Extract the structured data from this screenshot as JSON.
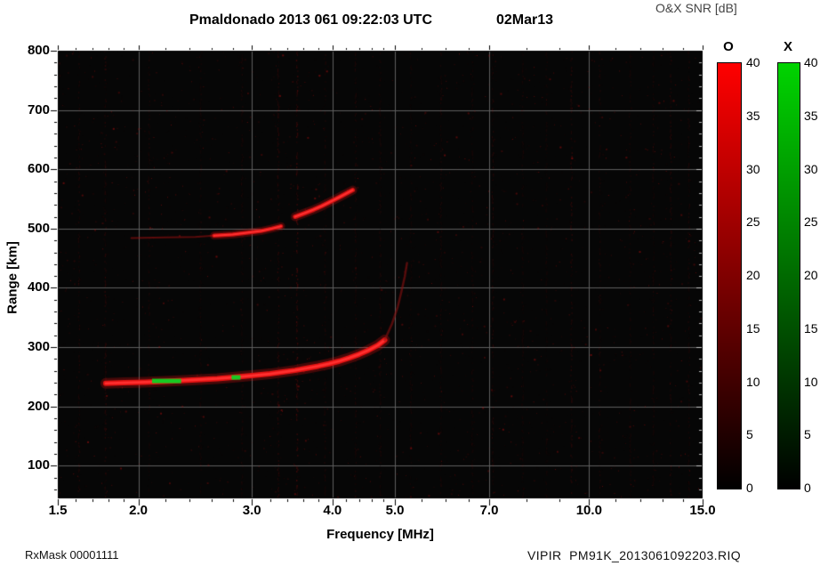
{
  "header": {
    "title_main": "Pmaldonado 2013 061 09:22:03 UTC",
    "title_date": "02Mar13",
    "colorbar_title": "O&X SNR [dB]"
  },
  "footer": {
    "left": "RxMask 00001111",
    "right": "VIPIR  PM91K_2013061092203.RIQ"
  },
  "chart_data": {
    "type": "heatmap",
    "title": "Pmaldonado 2013 061 09:22:03 UTC  02Mar13",
    "subtitle": "O&X SNR [dB] ionogram",
    "xlabel": "Frequency [MHz]",
    "ylabel": "Range [km]",
    "x_scale": "log",
    "xlim": [
      1.5,
      15.0
    ],
    "ylim": [
      45,
      800
    ],
    "x_ticks": [
      1.5,
      2,
      3,
      4,
      5,
      7,
      10,
      15
    ],
    "x_tick_labels": [
      "1.5",
      "2.0",
      "3.0",
      "4.0",
      "5.0",
      "7.0",
      "10.0",
      "15.0"
    ],
    "x_minor_ticks": [
      1.6,
      1.7,
      1.8,
      1.9,
      2.2,
      2.4,
      2.6,
      2.8,
      3.2,
      3.4,
      3.6,
      3.8,
      4.2,
      4.4,
      4.6,
      4.8,
      5.5,
      6,
      6.5,
      8,
      9,
      11,
      12,
      13,
      14
    ],
    "y_ticks": [
      100,
      200,
      300,
      400,
      500,
      600,
      700,
      800
    ],
    "y_minor_step": 20,
    "grid": {
      "x": [
        2,
        3,
        4,
        5,
        7,
        10
      ],
      "y": [
        100,
        200,
        300,
        400,
        500,
        600,
        700
      ],
      "color": "#5f5f5f"
    },
    "background": "#060606",
    "traces": [
      {
        "name": "F-region O-mode first hop",
        "color": "#e41212",
        "width": 6,
        "points": [
          [
            1.78,
            239
          ],
          [
            1.9,
            240
          ],
          [
            2.05,
            241
          ],
          [
            2.2,
            242.5
          ],
          [
            2.35,
            244
          ],
          [
            2.5,
            245.5
          ],
          [
            2.65,
            247
          ],
          [
            2.8,
            249
          ],
          [
            3.0,
            252
          ],
          [
            3.2,
            255
          ],
          [
            3.35,
            258
          ],
          [
            3.5,
            261
          ],
          [
            3.65,
            264.5
          ],
          [
            3.8,
            268
          ],
          [
            3.95,
            272
          ],
          [
            4.1,
            276.5
          ],
          [
            4.25,
            282
          ],
          [
            4.4,
            288
          ],
          [
            4.55,
            295
          ],
          [
            4.7,
            303
          ],
          [
            4.82,
            312
          ]
        ]
      },
      {
        "name": "F-region cusp asymptote",
        "color": "#8a1010",
        "width": 2.5,
        "alpha": 0.6,
        "points": [
          [
            4.82,
            312
          ],
          [
            4.95,
            340
          ],
          [
            5.05,
            368
          ],
          [
            5.12,
            395
          ],
          [
            5.18,
            420
          ],
          [
            5.22,
            442
          ]
        ]
      },
      {
        "name": "second-hop faint leading edge",
        "color": "#a01010",
        "width": 2,
        "alpha": 0.55,
        "points": [
          [
            1.95,
            484
          ],
          [
            2.2,
            485
          ],
          [
            2.45,
            486
          ],
          [
            2.62,
            488
          ]
        ]
      },
      {
        "name": "F-region second hop segment A",
        "color": "#cf1010",
        "width": 4.5,
        "points": [
          [
            2.62,
            488
          ],
          [
            2.8,
            490
          ],
          [
            2.95,
            493
          ],
          [
            3.1,
            496
          ],
          [
            3.22,
            500
          ],
          [
            3.33,
            504
          ]
        ]
      },
      {
        "name": "F-region second hop segment B",
        "color": "#d41111",
        "width": 5,
        "points": [
          [
            3.5,
            520
          ],
          [
            3.62,
            526
          ],
          [
            3.74,
            532
          ],
          [
            3.85,
            538
          ],
          [
            3.95,
            544
          ],
          [
            4.05,
            550
          ],
          [
            4.15,
            556
          ],
          [
            4.3,
            565
          ]
        ]
      }
    ],
    "x_mode_marks": [
      {
        "f1": 2.1,
        "f2": 2.33,
        "range": 243
      },
      {
        "f1": 2.79,
        "f2": 2.88,
        "range": 249
      }
    ],
    "x_mode_color": "#17c922",
    "rfi_stripes": [
      {
        "f": 1.62,
        "a": 0.07
      },
      {
        "f": 1.78,
        "a": 0.09
      },
      {
        "f": 2.08,
        "a": 0.06
      },
      {
        "f": 2.5,
        "a": 0.05
      },
      {
        "f": 2.9,
        "a": 0.06
      },
      {
        "f": 3.3,
        "a": 0.1
      },
      {
        "f": 3.53,
        "a": 0.16
      },
      {
        "f": 3.9,
        "a": 0.06
      },
      {
        "f": 4.35,
        "a": 0.07
      },
      {
        "f": 4.75,
        "a": 0.06
      },
      {
        "f": 5.3,
        "a": 0.05
      },
      {
        "f": 5.9,
        "a": 0.06
      },
      {
        "f": 6.6,
        "a": 0.05
      },
      {
        "f": 7.1,
        "a": 0.08
      },
      {
        "f": 7.9,
        "a": 0.05
      },
      {
        "f": 8.6,
        "a": 0.05
      },
      {
        "f": 9.4,
        "a": 0.1
      },
      {
        "f": 10.4,
        "a": 0.06
      },
      {
        "f": 11.6,
        "a": 0.05
      },
      {
        "f": 12.6,
        "a": 0.06
      },
      {
        "f": 13.4,
        "a": 0.08
      },
      {
        "f": 14.3,
        "a": 0.06
      }
    ],
    "noise": {
      "seed": 61,
      "count": 3200,
      "stripe_color": "#d01010",
      "dot_color": "#b71010"
    },
    "legend_position": "right",
    "colorbar_range": [
      0,
      40
    ]
  },
  "colorbars": [
    {
      "id": "O",
      "label": "O",
      "color_top": "#ff0000",
      "color_bottom": "#000000",
      "ticks": [
        0,
        5,
        10,
        15,
        20,
        25,
        30,
        35,
        40
      ]
    },
    {
      "id": "X",
      "label": "X",
      "color_top": "#00d400",
      "color_bottom": "#000000",
      "ticks": [
        0,
        5,
        10,
        15,
        20,
        25,
        30,
        35,
        40
      ]
    }
  ]
}
